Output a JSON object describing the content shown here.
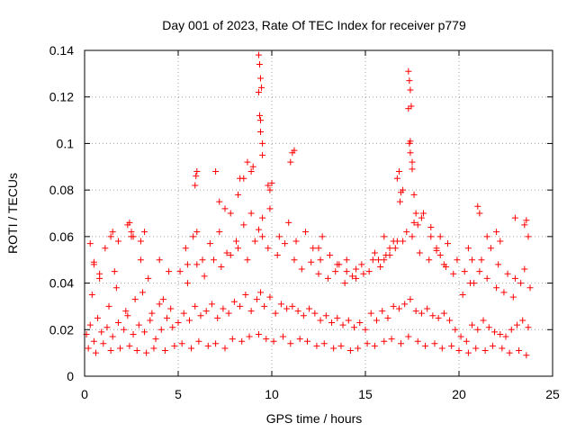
{
  "chart_data": {
    "type": "scatter",
    "title": "Day 001 of 2023, Rate Of TEC Index for receiver p779",
    "xlabel": "GPS time / hours",
    "ylabel": "ROTI / TECUs",
    "xlim": [
      0,
      25
    ],
    "ylim": [
      0,
      0.14
    ],
    "x_ticks": [
      0,
      5,
      10,
      15,
      20,
      25
    ],
    "y_ticks": [
      0,
      0.02,
      0.04,
      0.06,
      0.08,
      0.1,
      0.12,
      0.14
    ],
    "grid": true,
    "marker": "plus",
    "point_color": "#ff0000",
    "series": [
      {
        "x": [
          0.1,
          0.3,
          0.5,
          0.7,
          0.9,
          1.2,
          1.5,
          1.8,
          2.1,
          2.3,
          2.6,
          2.9,
          3.2,
          3.5,
          3.8,
          4.1,
          4.4,
          4.7,
          5.0,
          5.3,
          5.6,
          5.9,
          6.2,
          6.5,
          6.8,
          7.1,
          7.4,
          7.7,
          8.0,
          8.3,
          8.6,
          8.9,
          9.2,
          9.4,
          9.6,
          9.9,
          10.2,
          10.5,
          10.8,
          11.1,
          11.4,
          11.7,
          12.0,
          12.3,
          12.6,
          12.9,
          13.2,
          13.5,
          13.8,
          14.1,
          14.4,
          14.7,
          15.0,
          15.3,
          15.6,
          15.9,
          16.2,
          16.5,
          16.8,
          17.1,
          17.4,
          17.7,
          18.0,
          18.3,
          18.6,
          18.9,
          19.2,
          19.5,
          19.8,
          20.1,
          20.4,
          20.7,
          21.0,
          21.3,
          21.6,
          21.9,
          22.2,
          22.5,
          22.8,
          23.1,
          23.4,
          23.7,
          0.2,
          0.6,
          1.0,
          1.4,
          1.9,
          2.4,
          2.8,
          3.3,
          3.7,
          4.3,
          4.8,
          5.2,
          5.7,
          6.1,
          6.6,
          7.0,
          7.5,
          7.9,
          8.4,
          8.8,
          9.3,
          9.7,
          10.1,
          10.6,
          11.0,
          11.5,
          11.9,
          12.4,
          12.8,
          13.3,
          13.7,
          14.2,
          14.6,
          15.1,
          15.5,
          16.0,
          16.4,
          16.9,
          17.3,
          17.8,
          18.2,
          18.7,
          19.1,
          19.6,
          20.0,
          20.5,
          20.9,
          21.4,
          21.8,
          22.3,
          22.7,
          23.2,
          23.6,
          0.4,
          0.8,
          1.3,
          1.7,
          2.2,
          2.7,
          3.1,
          3.6,
          4.0,
          4.6,
          5.1,
          5.5,
          6.0,
          6.4,
          6.9,
          7.3,
          7.8,
          8.2,
          8.7,
          9.1,
          9.5,
          9.8,
          10.3,
          10.7,
          11.2,
          11.6,
          12.1,
          12.5,
          13.0,
          13.4,
          13.9,
          14.3,
          14.8,
          15.2,
          15.7,
          16.1,
          16.6,
          17.0,
          17.5,
          17.9,
          18.4,
          18.8,
          19.3,
          19.7,
          20.2,
          20.6,
          21.1,
          21.5,
          22.0,
          22.4,
          22.9,
          23.3,
          23.8,
          0.5,
          1.1,
          1.6,
          2.5,
          3.0,
          3.4,
          4.2,
          5.4,
          5.8,
          6.3,
          6.7,
          7.2,
          7.6,
          8.1,
          8.5,
          8.9,
          9.3,
          9.5,
          9.9,
          10.4,
          10.9,
          11.3,
          11.8,
          12.2,
          12.7,
          13.1,
          13.6,
          14.0,
          14.5,
          14.9,
          15.4,
          15.8,
          16.3,
          16.7,
          17.2,
          17.6,
          18.1,
          18.5,
          19.0,
          19.4,
          19.9,
          20.3,
          20.8,
          21.2,
          21.7,
          22.1,
          22.6,
          23.0,
          23.5,
          9.3,
          9.35,
          9.4,
          9.45,
          9.3,
          9.35,
          9.4,
          9.4,
          9.5,
          9.5,
          9.8,
          9.9,
          10.0,
          11.0,
          11.1,
          11.2,
          8.5,
          8.7,
          8.9,
          9.0,
          5.9,
          5.95,
          6.0,
          7.0,
          7.2,
          7.5,
          7.8,
          8.2,
          8.3,
          17.3,
          17.35,
          17.4,
          17.45,
          17.3,
          17.35,
          17.4,
          17.4,
          17.5,
          17.5,
          16.7,
          16.8,
          16.85,
          16.9,
          17.0,
          17.6,
          17.7,
          17.8,
          18.0,
          18.5,
          18.8,
          19.0,
          19.2,
          16.0,
          16.3,
          16.5,
          2.3,
          2.4,
          2.5,
          2.6,
          3.0,
          3.2,
          1.4,
          1.5,
          1.8,
          4.0,
          4.5,
          5.5,
          6.0,
          12.5,
          12.6,
          13.5,
          14.0,
          14.5,
          21.0,
          21.1,
          21.5,
          22.0,
          22.2,
          23.0,
          23.5,
          23.6,
          23.7,
          20.5,
          20.7,
          0.3,
          0.5,
          0.8,
          15.5,
          16.0
        ],
        "y": [
          0.018,
          0.022,
          0.015,
          0.025,
          0.019,
          0.021,
          0.017,
          0.023,
          0.02,
          0.026,
          0.018,
          0.022,
          0.019,
          0.024,
          0.016,
          0.02,
          0.025,
          0.021,
          0.023,
          0.027,
          0.024,
          0.03,
          0.026,
          0.028,
          0.031,
          0.025,
          0.029,
          0.027,
          0.032,
          0.03,
          0.035,
          0.028,
          0.033,
          0.036,
          0.03,
          0.034,
          0.027,
          0.031,
          0.029,
          0.03,
          0.028,
          0.026,
          0.029,
          0.027,
          0.024,
          0.026,
          0.023,
          0.025,
          0.022,
          0.024,
          0.021,
          0.023,
          0.02,
          0.027,
          0.024,
          0.028,
          0.025,
          0.03,
          0.029,
          0.031,
          0.033,
          0.028,
          0.027,
          0.029,
          0.026,
          0.025,
          0.027,
          0.024,
          0.02,
          0.017,
          0.015,
          0.022,
          0.02,
          0.024,
          0.021,
          0.019,
          0.018,
          0.017,
          0.02,
          0.022,
          0.024,
          0.021,
          0.012,
          0.01,
          0.014,
          0.011,
          0.012,
          0.013,
          0.011,
          0.01,
          0.012,
          0.011,
          0.013,
          0.014,
          0.012,
          0.015,
          0.013,
          0.014,
          0.012,
          0.016,
          0.015,
          0.017,
          0.018,
          0.016,
          0.015,
          0.017,
          0.014,
          0.016,
          0.015,
          0.013,
          0.014,
          0.012,
          0.013,
          0.011,
          0.012,
          0.014,
          0.013,
          0.015,
          0.016,
          0.014,
          0.017,
          0.015,
          0.013,
          0.014,
          0.012,
          0.013,
          0.011,
          0.01,
          0.012,
          0.011,
          0.013,
          0.012,
          0.01,
          0.011,
          0.009,
          0.035,
          0.042,
          0.03,
          0.038,
          0.028,
          0.033,
          0.036,
          0.027,
          0.031,
          0.029,
          0.045,
          0.04,
          0.048,
          0.043,
          0.05,
          0.047,
          0.052,
          0.055,
          0.05,
          0.058,
          0.06,
          0.055,
          0.052,
          0.057,
          0.05,
          0.046,
          0.049,
          0.044,
          0.042,
          0.045,
          0.04,
          0.043,
          0.048,
          0.045,
          0.05,
          0.052,
          0.055,
          0.058,
          0.06,
          0.053,
          0.05,
          0.054,
          0.047,
          0.044,
          0.035,
          0.04,
          0.045,
          0.042,
          0.038,
          0.036,
          0.034,
          0.04,
          0.038,
          0.048,
          0.055,
          0.045,
          0.06,
          0.05,
          0.042,
          0.033,
          0.055,
          0.06,
          0.05,
          0.057,
          0.062,
          0.053,
          0.058,
          0.065,
          0.07,
          0.063,
          0.068,
          0.072,
          0.06,
          0.066,
          0.058,
          0.062,
          0.055,
          0.06,
          0.052,
          0.048,
          0.05,
          0.046,
          0.044,
          0.05,
          0.047,
          0.052,
          0.058,
          0.062,
          0.066,
          0.07,
          0.064,
          0.06,
          0.057,
          0.05,
          0.045,
          0.04,
          0.05,
          0.055,
          0.048,
          0.044,
          0.042,
          0.046,
          0.138,
          0.134,
          0.128,
          0.124,
          0.122,
          0.112,
          0.11,
          0.105,
          0.1,
          0.095,
          0.082,
          0.08,
          0.083,
          0.092,
          0.096,
          0.097,
          0.085,
          0.092,
          0.088,
          0.09,
          0.082,
          0.086,
          0.088,
          0.088,
          0.075,
          0.072,
          0.07,
          0.078,
          0.085,
          0.131,
          0.127,
          0.123,
          0.116,
          0.115,
          0.1,
          0.101,
          0.096,
          0.092,
          0.089,
          0.085,
          0.088,
          0.075,
          0.079,
          0.08,
          0.078,
          0.07,
          0.065,
          0.068,
          0.06,
          0.055,
          0.052,
          0.048,
          0.06,
          0.055,
          0.058,
          0.065,
          0.066,
          0.062,
          0.06,
          0.058,
          0.062,
          0.06,
          0.062,
          0.058,
          0.05,
          0.045,
          0.048,
          0.062,
          0.055,
          0.05,
          0.048,
          0.045,
          0.042,
          0.073,
          0.07,
          0.06,
          0.062,
          0.058,
          0.068,
          0.065,
          0.067,
          0.06,
          0.055,
          0.05,
          0.057,
          0.049,
          0.044,
          0.053,
          0.05
        ]
      }
    ]
  }
}
